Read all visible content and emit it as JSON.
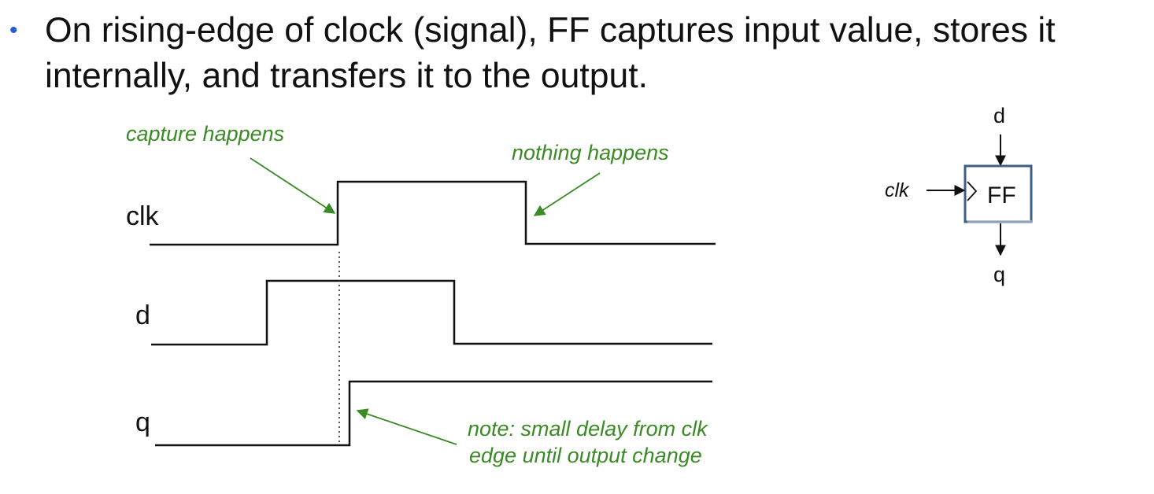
{
  "slide": {
    "bullet_text": "On rising-edge of clock (signal), FF captures input value, stores it internally, and transfers it to the output.",
    "bullet_glyph": "•",
    "bullet_color": "#2a5bd7"
  },
  "timing": {
    "signals": [
      {
        "name": "clk",
        "label": "clk"
      },
      {
        "name": "d",
        "label": "d"
      },
      {
        "name": "q",
        "label": "q"
      }
    ],
    "notes": {
      "capture": "capture happens",
      "nothing": "nothing happens",
      "delay_line1": "note: small delay from clk",
      "delay_line2": "edge until output change"
    },
    "note_color": "#3a8a25"
  },
  "flipflop": {
    "label": "FF",
    "input_d": "d",
    "input_clk": "clk",
    "output_q": "q",
    "box_border_color": "#3e5e86"
  }
}
